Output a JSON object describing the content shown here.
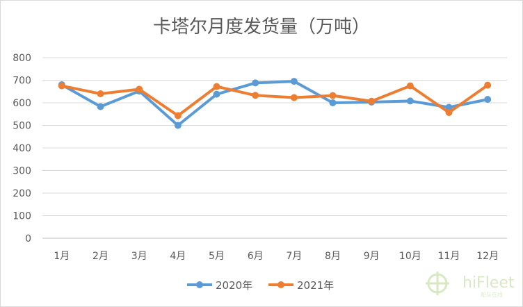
{
  "chart_data": {
    "type": "line",
    "title": "卡塔尔月度发货量（万吨）",
    "categories": [
      "1月",
      "2月",
      "3月",
      "4月",
      "5月",
      "6月",
      "7月",
      "8月",
      "9月",
      "10月",
      "11月",
      "12月"
    ],
    "series": [
      {
        "name": "2020年",
        "color": "#5b9bd5",
        "values": [
          680,
          583,
          652,
          500,
          638,
          688,
          695,
          600,
          603,
          608,
          580,
          615
        ]
      },
      {
        "name": "2021年",
        "color": "#ed7d31",
        "values": [
          675,
          640,
          660,
          543,
          672,
          633,
          623,
          632,
          607,
          675,
          557,
          678
        ]
      }
    ],
    "ylim": [
      0,
      800
    ],
    "yticks": [
      0,
      100,
      200,
      300,
      400,
      500,
      600,
      700,
      800
    ],
    "grid": true,
    "legend": "bottom"
  },
  "watermark": {
    "brand": "hiFleet",
    "sub": "船队在线",
    "icon": "crosshair-globe-icon",
    "color": "#8dc63f"
  }
}
